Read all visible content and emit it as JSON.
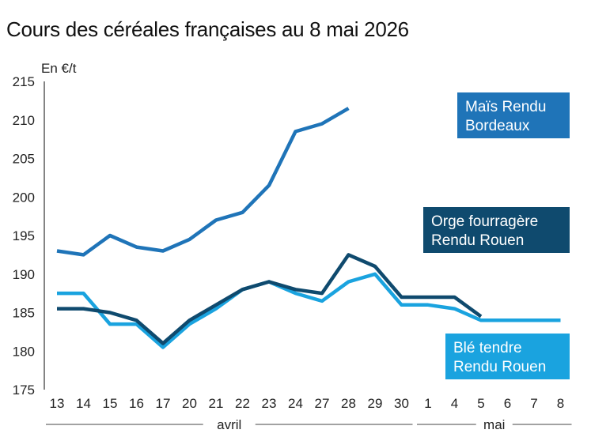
{
  "chart_data": {
    "type": "line",
    "title": "Cours des céréales françaises au 8 mai 2026",
    "ylabel": "En €/t",
    "ylim": [
      175,
      215
    ],
    "yticks": [
      175,
      180,
      185,
      190,
      195,
      200,
      205,
      210,
      215
    ],
    "categories": [
      "13",
      "14",
      "15",
      "16",
      "17",
      "20",
      "21",
      "22",
      "23",
      "24",
      "27",
      "28",
      "29",
      "30",
      "1",
      "4",
      "5",
      "6",
      "7",
      "8"
    ],
    "month_labels": [
      {
        "label": "avril",
        "from": 0,
        "to": 13
      },
      {
        "label": "mai",
        "from": 14,
        "to": 19
      }
    ],
    "series": [
      {
        "name": "Maïs Rendu Bordeaux",
        "label_lines": [
          "Maïs Rendu",
          "Bordeaux"
        ],
        "color": "#1f74b8",
        "values": [
          193,
          192.5,
          195,
          193.5,
          193,
          194.5,
          197,
          198,
          201.5,
          208.5,
          209.5,
          211.5,
          null,
          null,
          null,
          null,
          null,
          null,
          null,
          null
        ]
      },
      {
        "name": "Orge fourragère Rendu Rouen",
        "label_lines": [
          "Orge fourragère",
          "Rendu Rouen"
        ],
        "color": "#0f4a6e",
        "values": [
          185.5,
          185.5,
          185,
          184,
          181,
          184,
          186,
          188,
          189,
          188,
          187.5,
          192.5,
          191,
          187,
          187,
          187,
          184.5,
          null,
          null,
          null
        ]
      },
      {
        "name": "Blé tendre Rendu Rouen",
        "label_lines": [
          "Blé tendre",
          "Rendu Rouen"
        ],
        "color": "#1aa3df",
        "values": [
          187.5,
          187.5,
          183.5,
          183.5,
          180.5,
          183.5,
          185.5,
          188,
          189,
          187.5,
          186.5,
          189,
          190,
          186,
          186,
          185.5,
          184,
          184,
          184,
          184
        ]
      }
    ],
    "grid": false
  }
}
